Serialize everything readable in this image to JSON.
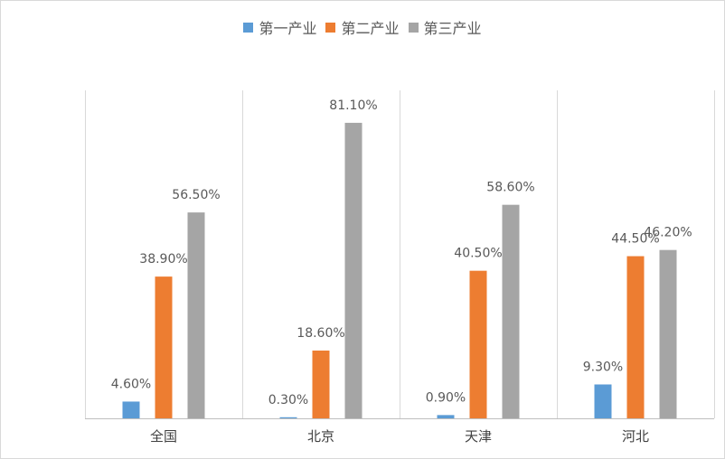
{
  "chart_data": {
    "type": "bar",
    "categories": [
      "全国",
      "北京",
      "天津",
      "河北"
    ],
    "series": [
      {
        "name": "第一产业",
        "color": "#5b9bd5",
        "values": [
          4.6,
          0.3,
          0.9,
          9.3
        ],
        "labels": [
          "4.60%",
          "0.30%",
          "0.90%",
          "9.30%"
        ]
      },
      {
        "name": "第二产业",
        "color": "#ed7d31",
        "values": [
          38.9,
          18.6,
          40.5,
          44.5
        ],
        "labels": [
          "38.90%",
          "18.60%",
          "40.50%",
          "44.50%"
        ]
      },
      {
        "name": "第三产业",
        "color": "#a5a5a5",
        "values": [
          56.5,
          81.1,
          58.6,
          46.2
        ],
        "labels": [
          "56.50%",
          "81.10%",
          "58.60%",
          "46.20%"
        ]
      }
    ],
    "title": "",
    "xlabel": "",
    "ylabel": "",
    "ylim": [
      0,
      90
    ],
    "grid": "vertical category separators",
    "legend": "top-center"
  }
}
